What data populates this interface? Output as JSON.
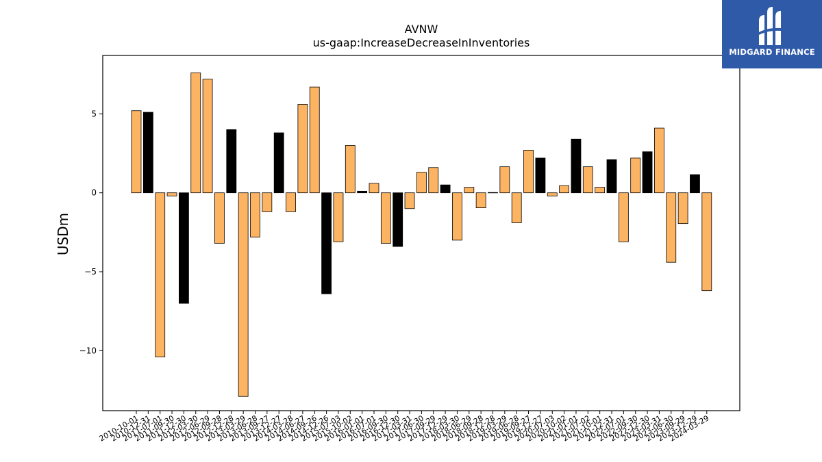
{
  "chart_data": {
    "type": "bar",
    "title": "AVNW",
    "subtitle": "us-gaap:IncreaseDecreaseInInventories",
    "xlabel": "",
    "ylabel": "USDm",
    "ylim": [
      -13.8,
      8.7
    ],
    "yticks": [
      -10,
      -5,
      0,
      5
    ],
    "grid": false,
    "colors": {
      "positive_change": "#fdb462",
      "negative_change": "#000000"
    },
    "categories": [
      "2010-10-01",
      "2010-12-31",
      "2011-07-01",
      "2011-09-30",
      "2011-12-30",
      "2012-03-30",
      "2012-06-29",
      "2012-09-28",
      "2012-12-28",
      "2013-03-29",
      "2013-06-28",
      "2013-09-27",
      "2013-12-27",
      "2014-03-28",
      "2014-06-27",
      "2014-09-26",
      "2014-12-26",
      "2015-07-03",
      "2015-10-02",
      "2016-01-01",
      "2016-07-01",
      "2016-09-30",
      "2016-12-30",
      "2017-03-31",
      "2017-06-30",
      "2017-09-29",
      "2017-12-29",
      "2018-03-30",
      "2018-06-29",
      "2018-09-28",
      "2018-12-28",
      "2019-03-29",
      "2019-06-28",
      "2019-09-27",
      "2019-12-27",
      "2020-07-03",
      "2020-10-02",
      "2021-01-01",
      "2021-07-02",
      "2021-10-01",
      "2021-12-31",
      "2022-07-01",
      "2022-09-30",
      "2022-12-30",
      "2023-03-31",
      "2023-06-30",
      "2023-09-29",
      "2023-12-29",
      "2024-03-29"
    ],
    "values": [
      5.2,
      5.1,
      -10.4,
      -0.2,
      -7.0,
      7.6,
      7.2,
      -3.2,
      4.0,
      -12.9,
      -2.8,
      -1.2,
      3.8,
      -1.2,
      5.6,
      6.7,
      -6.4,
      -3.1,
      3.0,
      0.1,
      0.6,
      -3.2,
      -3.4,
      -1.0,
      1.3,
      1.6,
      0.5,
      -3.0,
      0.35,
      -0.95,
      0.02,
      1.65,
      -1.9,
      2.7,
      2.2,
      -0.2,
      0.45,
      3.4,
      1.65,
      0.35,
      2.1,
      -3.1,
      2.2,
      2.6,
      4.1,
      -4.4,
      -1.95,
      1.15,
      -6.2
    ],
    "bar_colors": [
      "#fdb462",
      "#000000",
      "#fdb462",
      "#fdb462",
      "#000000",
      "#fdb462",
      "#fdb462",
      "#fdb462",
      "#000000",
      "#fdb462",
      "#fdb462",
      "#fdb462",
      "#000000",
      "#fdb462",
      "#fdb462",
      "#fdb462",
      "#000000",
      "#fdb462",
      "#fdb462",
      "#000000",
      "#fdb462",
      "#fdb462",
      "#000000",
      "#fdb462",
      "#fdb462",
      "#fdb462",
      "#000000",
      "#fdb462",
      "#fdb462",
      "#fdb462",
      "#000000",
      "#fdb462",
      "#fdb462",
      "#fdb462",
      "#000000",
      "#fdb462",
      "#fdb462",
      "#000000",
      "#fdb462",
      "#fdb462",
      "#000000",
      "#fdb462",
      "#fdb462",
      "#000000",
      "#fdb462",
      "#fdb462",
      "#fdb462",
      "#000000",
      "#fdb462"
    ]
  },
  "logo": {
    "text": "MIDGARD FINANCE",
    "icon": "midgard-logo-icon",
    "background": "#2f5aa8"
  }
}
